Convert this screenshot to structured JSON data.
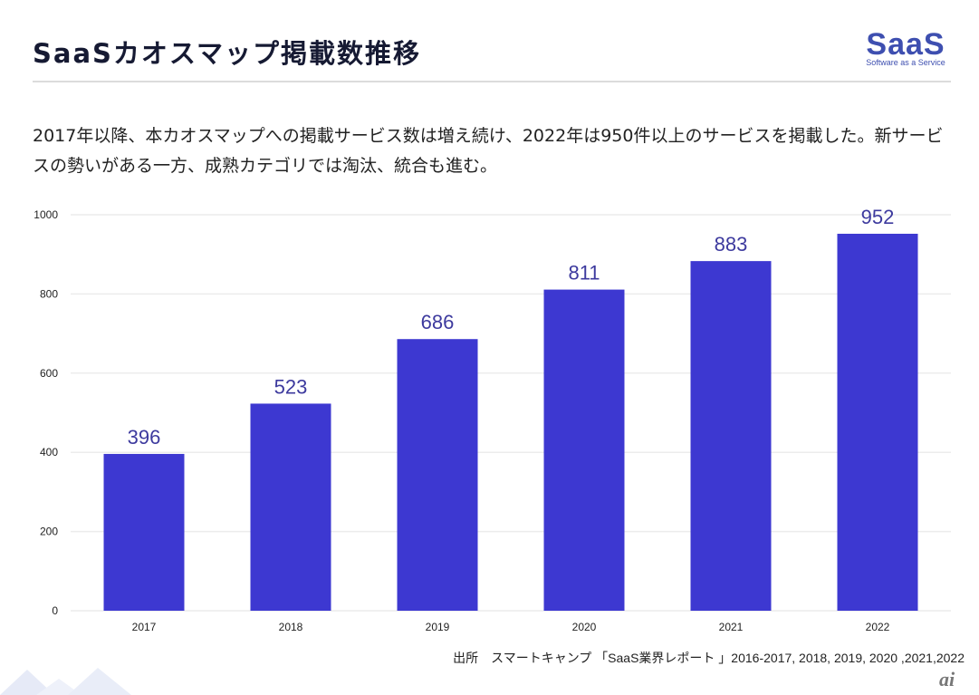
{
  "header": {
    "title": "SaaSカオスマップ掲載数推移",
    "logo_main": "SaaS",
    "logo_sub": "Software as a Service"
  },
  "description": "2017年以降、本カオスマップへの掲載サービス数は増え続け、2022年は950件以上のサービスを掲載した。新サービスの勢いがある一方、成熟カテゴリでは淘汰、統合も進む。",
  "source": "出所　スマートキャンプ 「SaaS業界レポート 」2016-2017, 2018, 2019, 2020 ,2021,2022",
  "watermark": "ai",
  "colors": {
    "bar": "#3d38d1",
    "label": "#3d3a9e",
    "grid": "#ececec",
    "title": "#161a33",
    "logo": "#3e4fb0"
  },
  "chart_data": {
    "type": "bar",
    "title": "",
    "xlabel": "",
    "ylabel": "",
    "categories": [
      "2017",
      "2018",
      "2019",
      "2020",
      "2021",
      "2022"
    ],
    "values": [
      396,
      523,
      686,
      811,
      883,
      952
    ],
    "ylim": [
      0,
      1000
    ],
    "yticks": [
      0,
      200,
      400,
      600,
      800,
      1000
    ],
    "grid": true,
    "data_labels": true,
    "legend": "none"
  }
}
